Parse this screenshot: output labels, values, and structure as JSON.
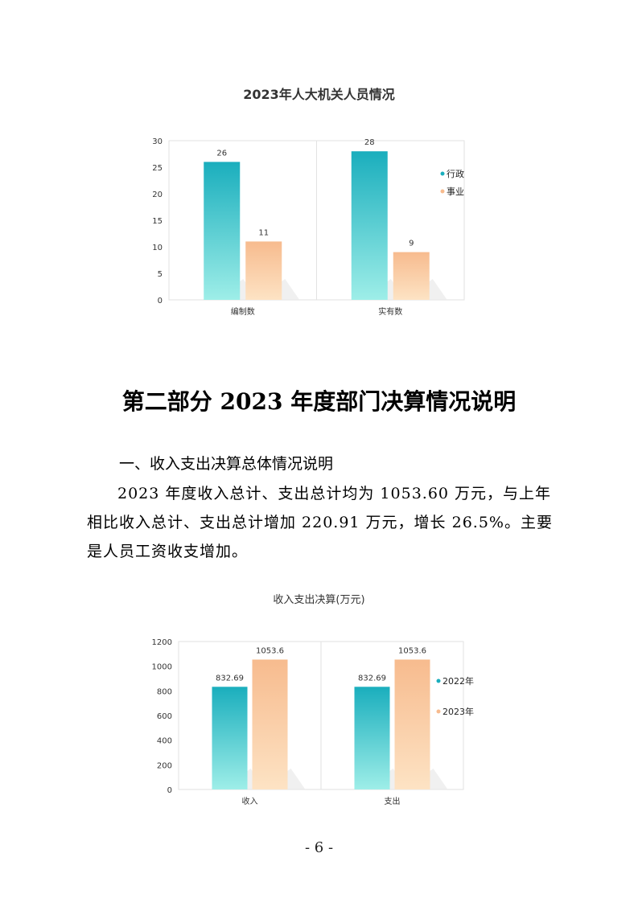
{
  "chart1": {
    "title": "2023年人大机关人员情况"
  },
  "section": {
    "title": "第二部分  2023 年度部门决算情况说明",
    "sub_heading": "一、收入支出决算总体情况说明",
    "paragraph": "2023 年度收入总计、支出总计均为 1053.60 万元，与上年相比收入总计、支出总计增加 220.91 万元，增长 26.5%。主要是人员工资收支增加。"
  },
  "chart2": {
    "title": "收入支出决算(万元)"
  },
  "page_number": "- 6 -",
  "chart_data": [
    {
      "type": "bar",
      "title": "2023年人大机关人员情况",
      "categories": [
        "编制数",
        "实有数"
      ],
      "series": [
        {
          "name": "行政",
          "values": [
            26,
            28
          ],
          "labels": [
            "26",
            "28"
          ],
          "color": "#1aaebd"
        },
        {
          "name": "事业",
          "values": [
            11,
            9
          ],
          "labels": [
            "11",
            "9"
          ],
          "color": "#f7bb8e"
        }
      ],
      "yticks": [
        "0",
        "5",
        "10",
        "15",
        "20",
        "25",
        "30"
      ],
      "ylim": [
        0,
        30
      ],
      "grid": true,
      "legend": "right"
    },
    {
      "type": "bar",
      "title": "收入支出决算(万元)",
      "categories": [
        "收入",
        "支出"
      ],
      "series": [
        {
          "name": "2022年",
          "values": [
            832.69,
            832.69
          ],
          "labels": [
            "832.69",
            "832.69"
          ],
          "color": "#1aaebd"
        },
        {
          "name": "2023年",
          "values": [
            1053.6,
            1053.6
          ],
          "labels": [
            "1053.6",
            "1053.6"
          ],
          "color": "#f7bb8e"
        }
      ],
      "yticks": [
        "0",
        "200",
        "400",
        "600",
        "800",
        "1000",
        "1200"
      ],
      "ylim": [
        0,
        1200
      ],
      "grid": true,
      "legend": "right"
    }
  ]
}
